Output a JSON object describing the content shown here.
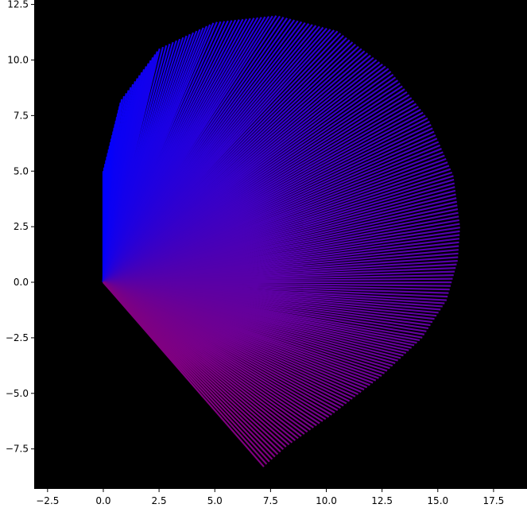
{
  "chart_data": {
    "type": "line",
    "title": "",
    "xlabel": "",
    "ylabel": "",
    "xlim": [
      -3.1,
      19.0
    ],
    "ylim": [
      -9.3,
      12.7
    ],
    "x_ticks": [
      -2.5,
      0.0,
      2.5,
      5.0,
      7.5,
      10.0,
      12.5,
      15.0,
      17.5
    ],
    "y_ticks": [
      -7.5,
      -5.0,
      -2.5,
      0.0,
      2.5,
      5.0,
      7.5,
      10.0,
      12.5
    ],
    "x_tick_labels": [
      "−2.5",
      "0.0",
      "2.5",
      "5.0",
      "7.5",
      "10.0",
      "12.5",
      "15.0",
      "17.5"
    ],
    "y_tick_labels": [
      "−7.5",
      "−5.0",
      "−2.5",
      "0.0",
      "2.5",
      "5.0",
      "7.5",
      "10.0",
      "12.5"
    ],
    "grid": false,
    "background_color": "#000000",
    "start_color": "#0000ff",
    "end_color": "#800080",
    "series": [
      {
        "description": "fan of line segments from the origin to points on the outer boundary",
        "origin": [
          0,
          0
        ],
        "segment_count": 240,
        "boundary": [
          {
            "x": 0.0,
            "y": 5.0
          },
          {
            "x": 0.8,
            "y": 8.2
          },
          {
            "x": 2.5,
            "y": 10.5
          },
          {
            "x": 5.0,
            "y": 11.7
          },
          {
            "x": 7.8,
            "y": 12.0
          },
          {
            "x": 10.5,
            "y": 11.3
          },
          {
            "x": 12.8,
            "y": 9.6
          },
          {
            "x": 14.6,
            "y": 7.3
          },
          {
            "x": 15.7,
            "y": 4.8
          },
          {
            "x": 16.0,
            "y": 2.5
          },
          {
            "x": 15.9,
            "y": 1.0
          },
          {
            "x": 15.4,
            "y": -0.8
          },
          {
            "x": 14.3,
            "y": -2.5
          },
          {
            "x": 12.5,
            "y": -4.2
          },
          {
            "x": 10.2,
            "y": -6.0
          },
          {
            "x": 8.2,
            "y": -7.4
          },
          {
            "x": 7.2,
            "y": -8.3
          }
        ]
      }
    ]
  }
}
